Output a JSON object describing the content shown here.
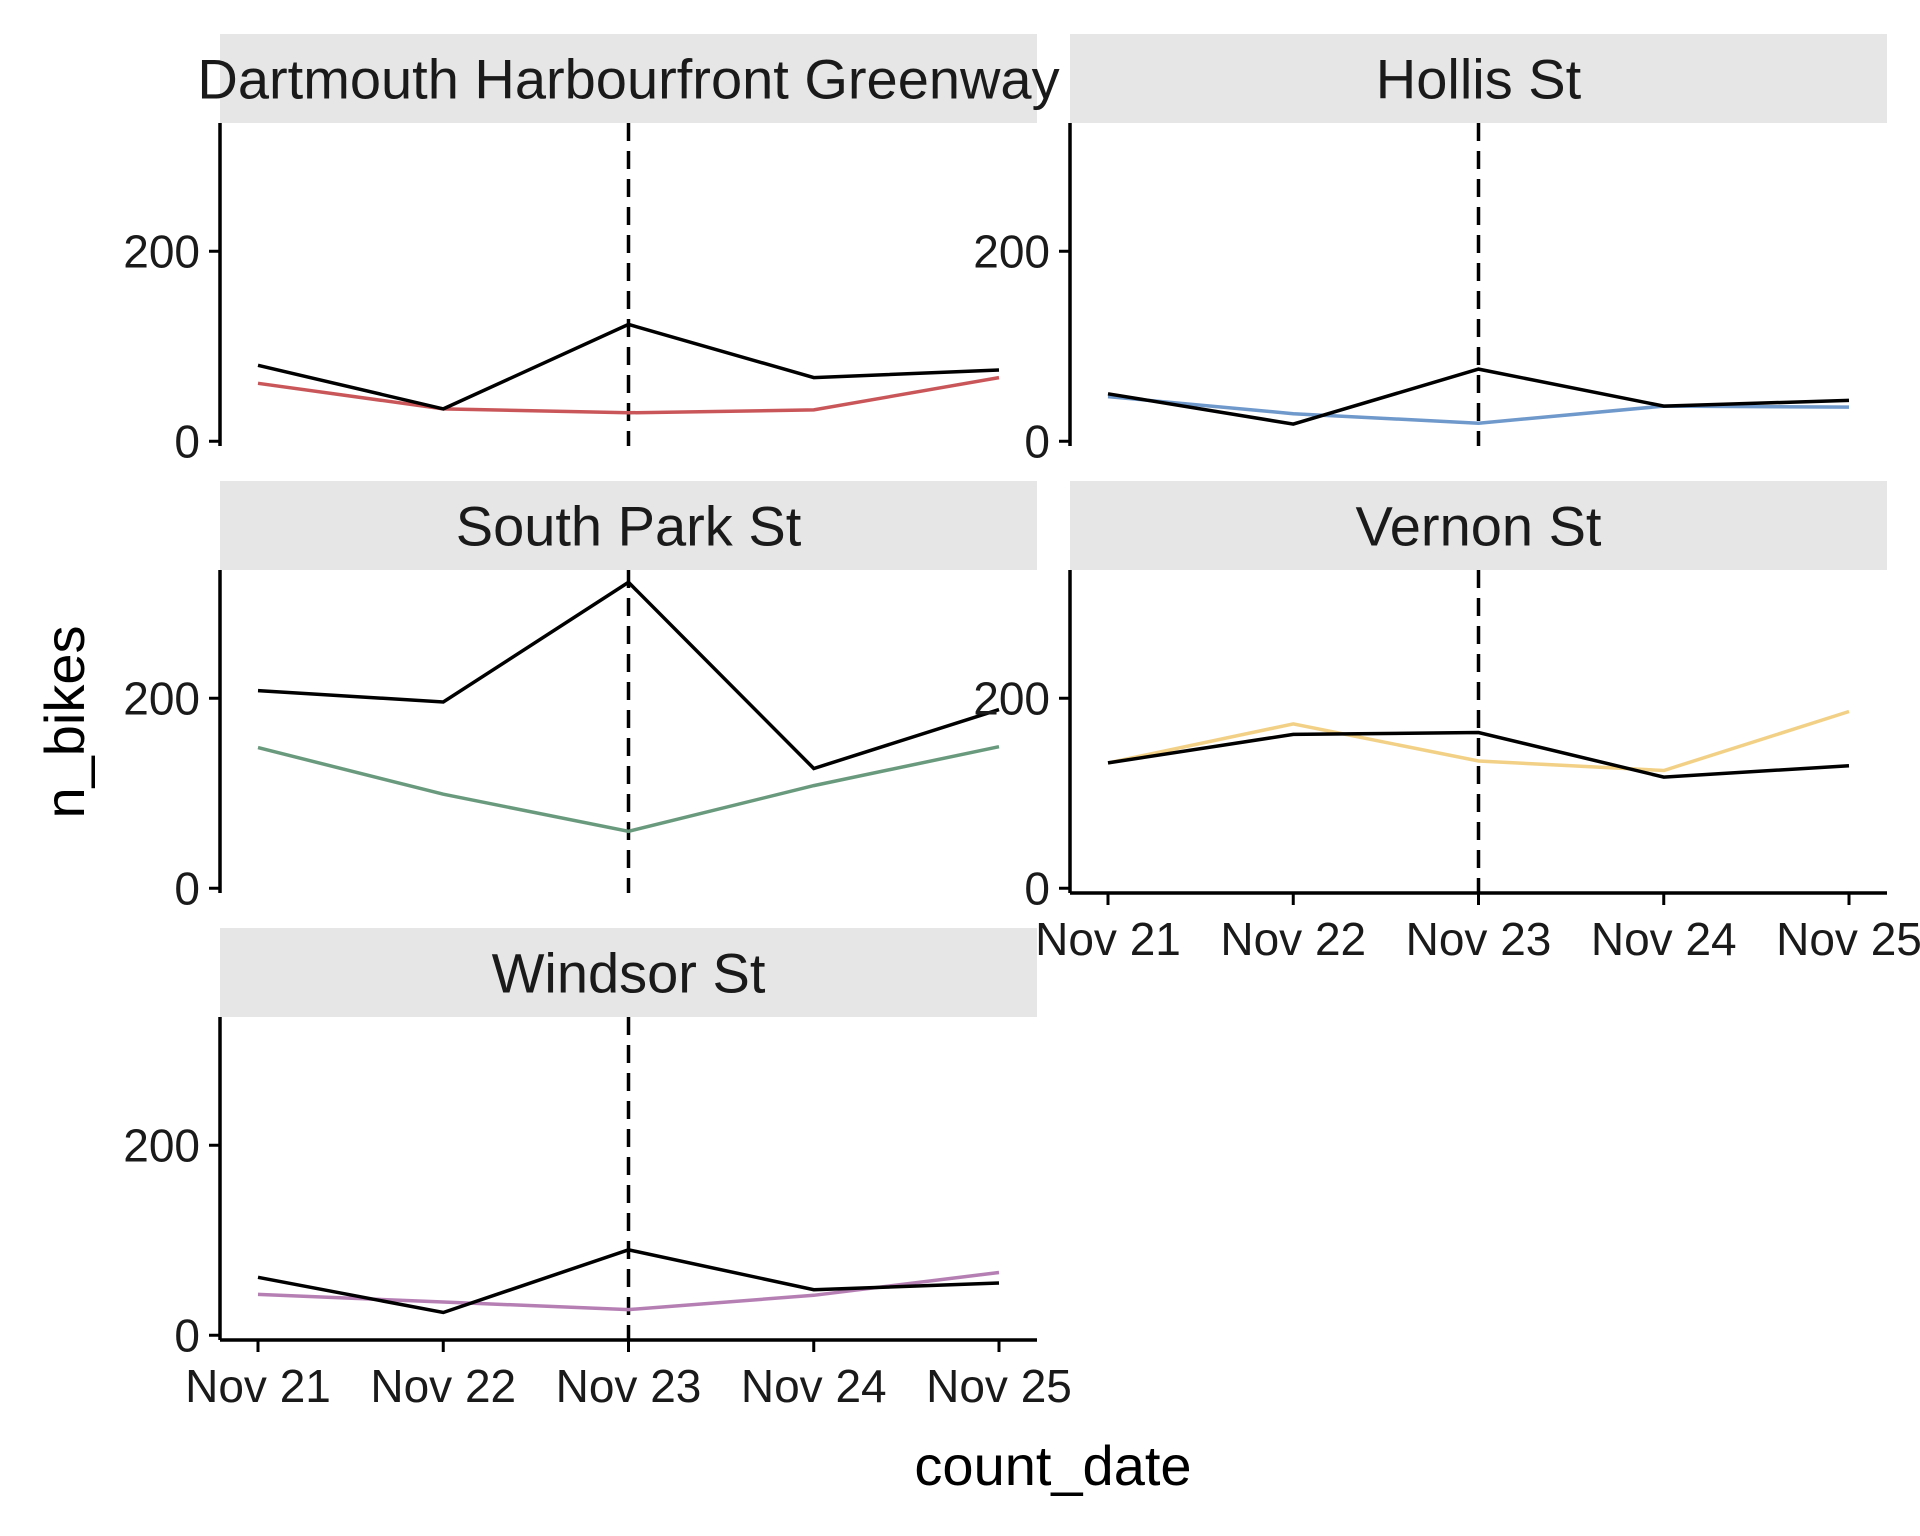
{
  "chart_data": {
    "type": "line",
    "layout": "facets-2-columns",
    "xlabel": "count_date",
    "ylabel": "n_bikes",
    "x": [
      "Nov 21",
      "Nov 22",
      "Nov 23",
      "Nov 24",
      "Nov 25"
    ],
    "x_tick_labels": [
      "Nov 21",
      "Nov 22",
      "Nov 23",
      "Nov 24",
      "Nov 25"
    ],
    "ylim": [
      -5,
      335
    ],
    "y_ticks": [
      0,
      200
    ],
    "y_tick_labels": [
      "0",
      "200"
    ],
    "reference_line": {
      "x": "Nov 23",
      "style": "dashed",
      "color": "#000000"
    },
    "grid": false,
    "legend": "none",
    "facets": [
      {
        "title": "Dartmouth Harbourfront Greenway",
        "series": [
          {
            "color": "#c9575a",
            "values": [
              61,
              34,
              30,
              33,
              67
            ]
          },
          {
            "color": "#000000",
            "values": [
              80,
              34,
              123,
              67,
              75
            ]
          }
        ]
      },
      {
        "title": "Hollis St",
        "series": [
          {
            "color": "#6f98cb",
            "values": [
              47,
              29,
              19,
              37,
              36
            ]
          },
          {
            "color": "#000000",
            "values": [
              50,
              18,
              76,
              37,
              43
            ]
          }
        ]
      },
      {
        "title": "South Park St",
        "series": [
          {
            "color": "#6a9a7e",
            "values": [
              148,
              99,
              60,
              108,
              149
            ]
          },
          {
            "color": "#000000",
            "values": [
              208,
              196,
              322,
              126,
              188
            ]
          }
        ]
      },
      {
        "title": "Vernon St",
        "series": [
          {
            "color": "#f2d186",
            "values": [
              132,
              173,
              134,
              124,
              186
            ]
          },
          {
            "color": "#000000",
            "values": [
              132,
              162,
              164,
              117,
              129
            ]
          }
        ]
      },
      {
        "title": "Windsor St",
        "series": [
          {
            "color": "#b57fb4",
            "values": [
              43,
              35,
              27,
              42,
              66
            ]
          },
          {
            "color": "#000000",
            "values": [
              61,
              24,
              90,
              48,
              55
            ]
          }
        ]
      }
    ]
  }
}
